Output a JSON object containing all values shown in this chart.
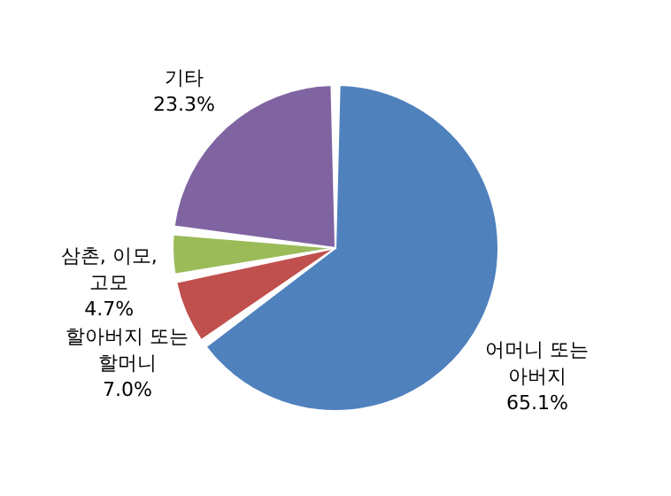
{
  "chart_data": {
    "type": "pie",
    "categories": [
      "어머니 또는 아버지",
      "할아버지 또는 할머니",
      "삼촌, 이모, 고모",
      "기타"
    ],
    "values": [
      65.1,
      7.0,
      4.7,
      23.3
    ],
    "value_labels": [
      "65.1%",
      "7.0%",
      "4.7%",
      "23.3%"
    ],
    "colors": [
      "#4f81bd",
      "#c0504d",
      "#9bbb59",
      "#8064a2"
    ],
    "legend": false
  }
}
